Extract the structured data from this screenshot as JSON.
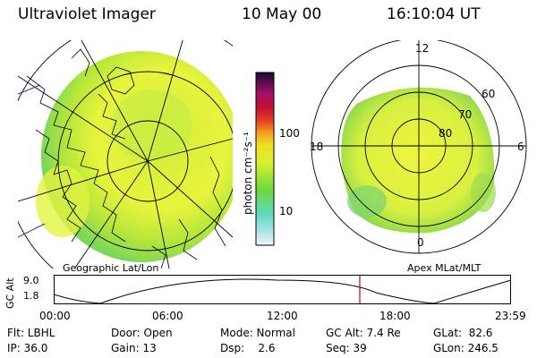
{
  "header": {
    "instrument": "Ultraviolet Imager",
    "date": "10 May 00",
    "time": "16:10:04 UT"
  },
  "colorbar": {
    "unit_label": "photon cm⁻²s⁻¹",
    "ticks": [
      "100",
      "10"
    ]
  },
  "maps": {
    "left_caption": "Geographic Lat/Lon",
    "right_caption": "Apex  MLat/MLT",
    "mlt_labels": {
      "top": "12",
      "left": "18",
      "right": "6",
      "bottom": "0"
    },
    "mlat_labels": [
      "60",
      "70",
      "80"
    ]
  },
  "altitude_panel": {
    "ylabel": "GC Alt",
    "y_ticks": [
      "9.0",
      "1.8"
    ],
    "x_ticks": [
      "00:00",
      "06:00",
      "12:00",
      "18:00",
      "23:59"
    ],
    "current_time_marker": "16:10"
  },
  "status": {
    "flt": "Flt: LBHL",
    "ip": "IP: 36.0",
    "door": "Door: Open",
    "gain": "Gain: 13",
    "mode": "Mode: Normal",
    "dsp": "Dsp:    2.6",
    "gcalt": "GC Alt: 7.4 Re",
    "seq": "Seq: 39",
    "glat": "GLat:  82.6",
    "glon": "GLon: 246.5"
  },
  "colors": {
    "emission_yellow": "#e6f23a",
    "emission_green": "#8fd83a",
    "emission_cyan": "#6fd8c8",
    "time_marker": "#cc0000"
  }
}
